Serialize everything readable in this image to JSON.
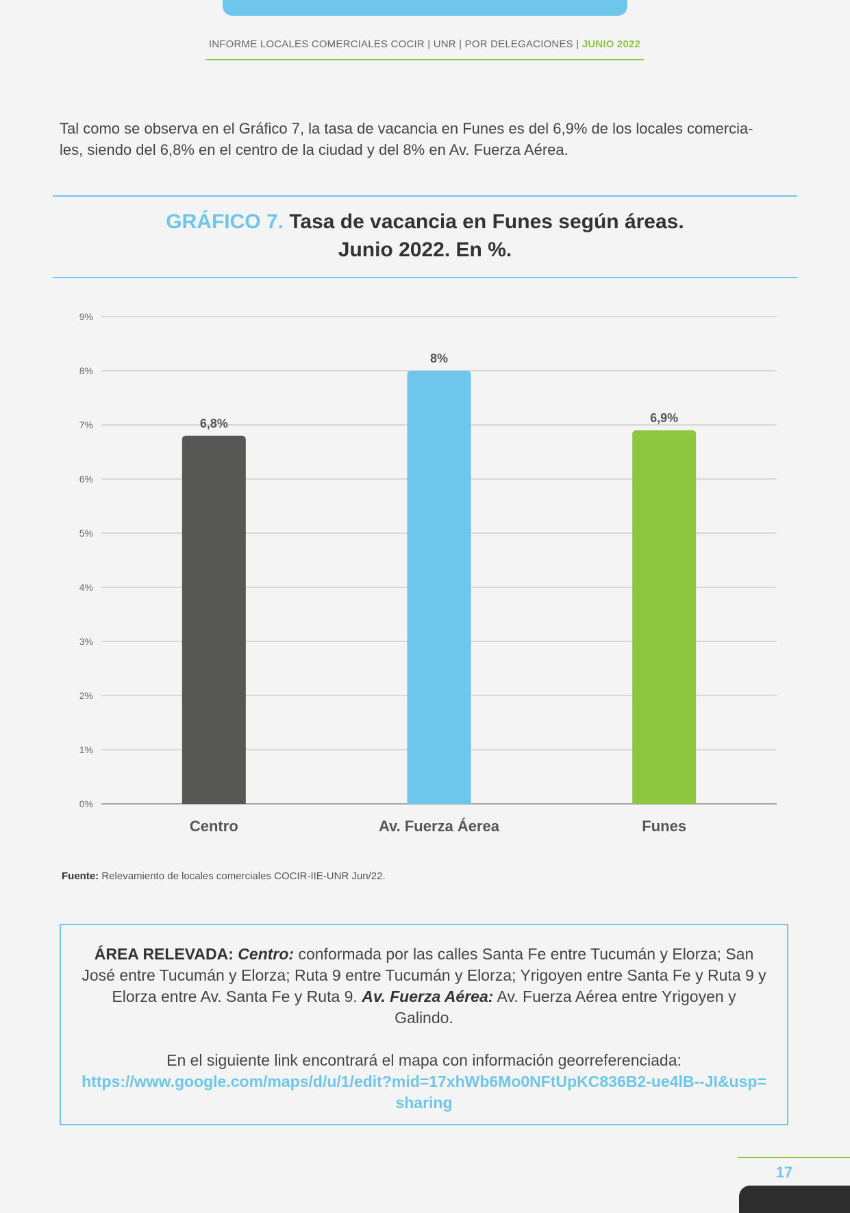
{
  "header": {
    "text": "INFORME LOCALES COMERCIALES COCIR | UNR | POR DELEGACIONES |",
    "date": "JUNIO 2022"
  },
  "intro": {
    "line1": "Tal como se observa en el Gráfico 7, la tasa de vacancia en Funes es del 6,9% de los locales comercia-",
    "line2": "les, siendo del 6,8% en el centro de la ciudad y del 8% en Av. Fuerza Aérea."
  },
  "figure": {
    "label": "GRÁFICO 7.",
    "title_line1": "Tasa de vacancia en Funes según áreas.",
    "title_line2": "Junio 2022. En %."
  },
  "chart_data": {
    "type": "bar",
    "title": "GRÁFICO 7. Tasa de vacancia en Funes según áreas. Junio 2022. En %.",
    "categories": [
      "Centro",
      "Av. Fuerza Áerea",
      "Funes"
    ],
    "values": [
      6.8,
      8.0,
      6.9
    ],
    "data_labels": [
      "6,8%",
      "8%",
      "6,9%"
    ],
    "colors": [
      "#575756",
      "#6ec6ec",
      "#8dc63f"
    ],
    "yticks": [
      "0%",
      "1%",
      "2%",
      "3%",
      "4%",
      "5%",
      "6%",
      "7%",
      "8%",
      "9%"
    ],
    "ylim": [
      0,
      9
    ],
    "grid": true,
    "legend": "none"
  },
  "source": {
    "label": "Fuente:",
    "text": "Relevamiento de locales comerciales COCIR-IIE-UNR Jun/22."
  },
  "area": {
    "heading": "ÁREA RELEVADA:",
    "centro_label": "Centro:",
    "centro_text": "conformada por las calles Santa Fe entre Tucumán y Elorza; San José entre Tucumán y Elorza; Ruta 9 entre Tucumán y Elorza; Yrigoyen entre Santa Fe y Ruta 9 y Elorza entre Av. Santa Fe y Ruta 9.",
    "fuerza_label": "Av. Fuerza Aérea:",
    "fuerza_text": "Av. Fuerza Aérea entre Yrigoyen y Galindo.",
    "link_intro": "En el siguiente link encontrará el mapa con información georreferenciada:",
    "link_url": "https://www.google.com/maps/d/u/1/edit?mid=17xhWb6Mo0NFtUpKC836B2-ue4lB--JI&usp=sharing"
  },
  "footer": {
    "page_number": "17"
  }
}
